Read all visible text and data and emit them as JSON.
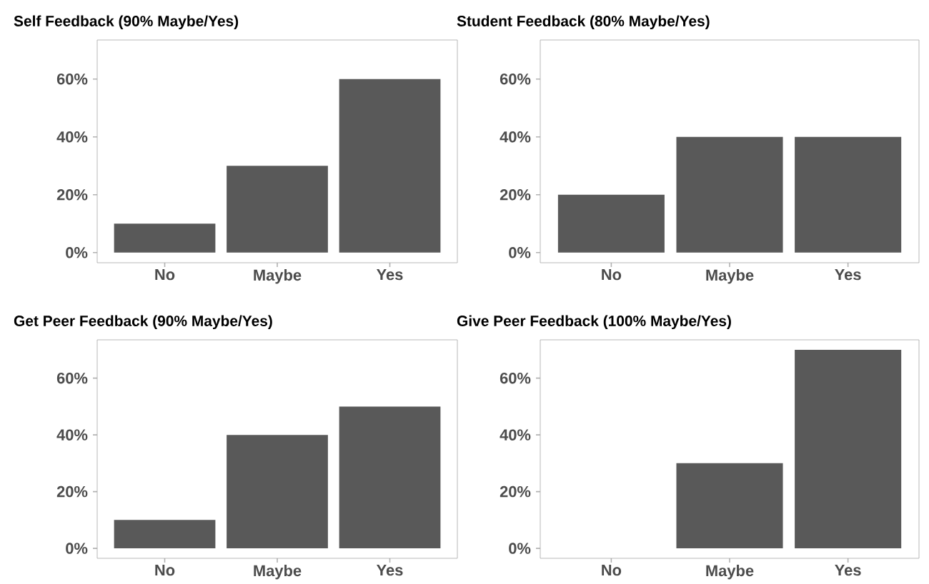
{
  "chart_data": [
    {
      "type": "bar",
      "title": "Self Feedback (90% Maybe/Yes)",
      "categories": [
        "No",
        "Maybe",
        "Yes"
      ],
      "values": [
        10,
        30,
        60
      ],
      "color": "#595959",
      "ylim": [
        -3.5,
        73.5
      ],
      "yticks": [
        {
          "value": 0,
          "label": "0%"
        },
        {
          "value": 20,
          "label": "20%"
        },
        {
          "value": 40,
          "label": "40%"
        },
        {
          "value": 60,
          "label": "60%"
        }
      ],
      "grid": false
    },
    {
      "type": "bar",
      "title": "Student Feedback (80% Maybe/Yes)",
      "categories": [
        "No",
        "Maybe",
        "Yes"
      ],
      "values": [
        20,
        40,
        40
      ],
      "color": "#595959",
      "ylim": [
        -3.5,
        73.5
      ],
      "yticks": [
        {
          "value": 0,
          "label": "0%"
        },
        {
          "value": 20,
          "label": "20%"
        },
        {
          "value": 40,
          "label": "40%"
        },
        {
          "value": 60,
          "label": "60%"
        }
      ],
      "grid": false
    },
    {
      "type": "bar",
      "title": "Get Peer Feedback (90% Maybe/Yes)",
      "categories": [
        "No",
        "Maybe",
        "Yes"
      ],
      "values": [
        10,
        40,
        50
      ],
      "color": "#595959",
      "ylim": [
        -3.5,
        73.5
      ],
      "yticks": [
        {
          "value": 0,
          "label": "0%"
        },
        {
          "value": 20,
          "label": "20%"
        },
        {
          "value": 40,
          "label": "40%"
        },
        {
          "value": 60,
          "label": "60%"
        }
      ],
      "grid": false
    },
    {
      "type": "bar",
      "title": "Give Peer Feedback (100% Maybe/Yes)",
      "categories": [
        "No",
        "Maybe",
        "Yes"
      ],
      "values": [
        0,
        30,
        70
      ],
      "color": "#595959",
      "ylim": [
        -3.5,
        73.5
      ],
      "yticks": [
        {
          "value": 0,
          "label": "0%"
        },
        {
          "value": 20,
          "label": "20%"
        },
        {
          "value": 40,
          "label": "40%"
        },
        {
          "value": 60,
          "label": "60%"
        }
      ],
      "grid": false
    }
  ]
}
